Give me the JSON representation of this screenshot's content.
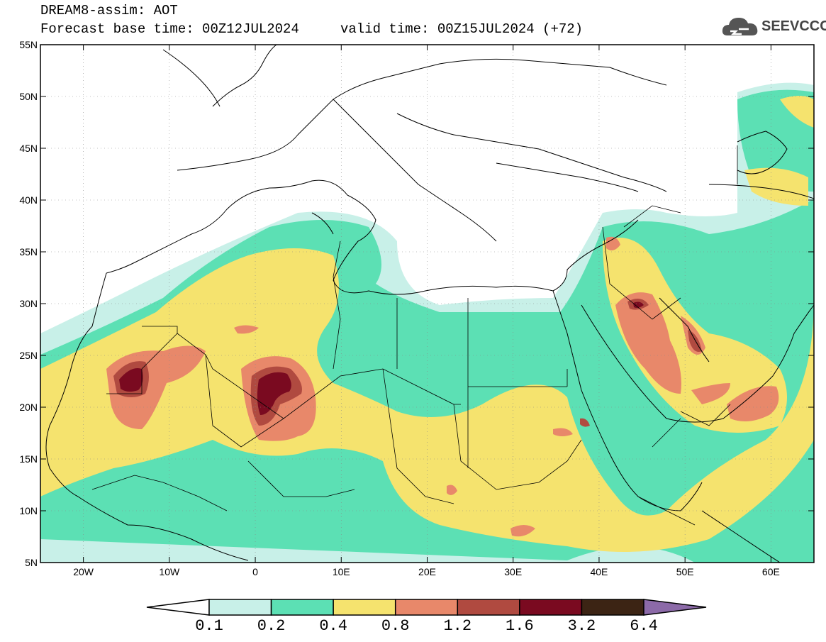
{
  "header": {
    "title": "DREAM8-assim: AOT",
    "base_time": "Forecast base time: 00Z12JUL2024",
    "valid_time": "valid time: 00Z15JUL2024 (+72)"
  },
  "logo": {
    "text": "SEEVCCC",
    "icon": "cloud-icon"
  },
  "map": {
    "lon_range": [
      -25,
      65
    ],
    "lat_range": [
      5,
      55
    ],
    "lat_ticks": [
      "5N",
      "10N",
      "15N",
      "20N",
      "25N",
      "30N",
      "35N",
      "40N",
      "45N",
      "50N",
      "55N"
    ],
    "lon_ticks": [
      "20W",
      "10W",
      "0",
      "10E",
      "20E",
      "30E",
      "40E",
      "50E",
      "60E"
    ],
    "lat_tick_values": [
      5,
      10,
      15,
      20,
      25,
      30,
      35,
      40,
      45,
      50,
      55
    ],
    "lon_tick_values": [
      -20,
      -10,
      0,
      10,
      20,
      30,
      40,
      50,
      60
    ]
  },
  "colorbar": {
    "labels": [
      "0.1",
      "0.2",
      "0.4",
      "0.8",
      "1.2",
      "1.6",
      "3.2",
      "6.4"
    ],
    "colors": [
      "#c8f0e8",
      "#5ce0b4",
      "#f5e36e",
      "#e8886a",
      "#b04a40",
      "#7a0a20",
      "#3c2414",
      "#8c6aa8"
    ]
  }
}
